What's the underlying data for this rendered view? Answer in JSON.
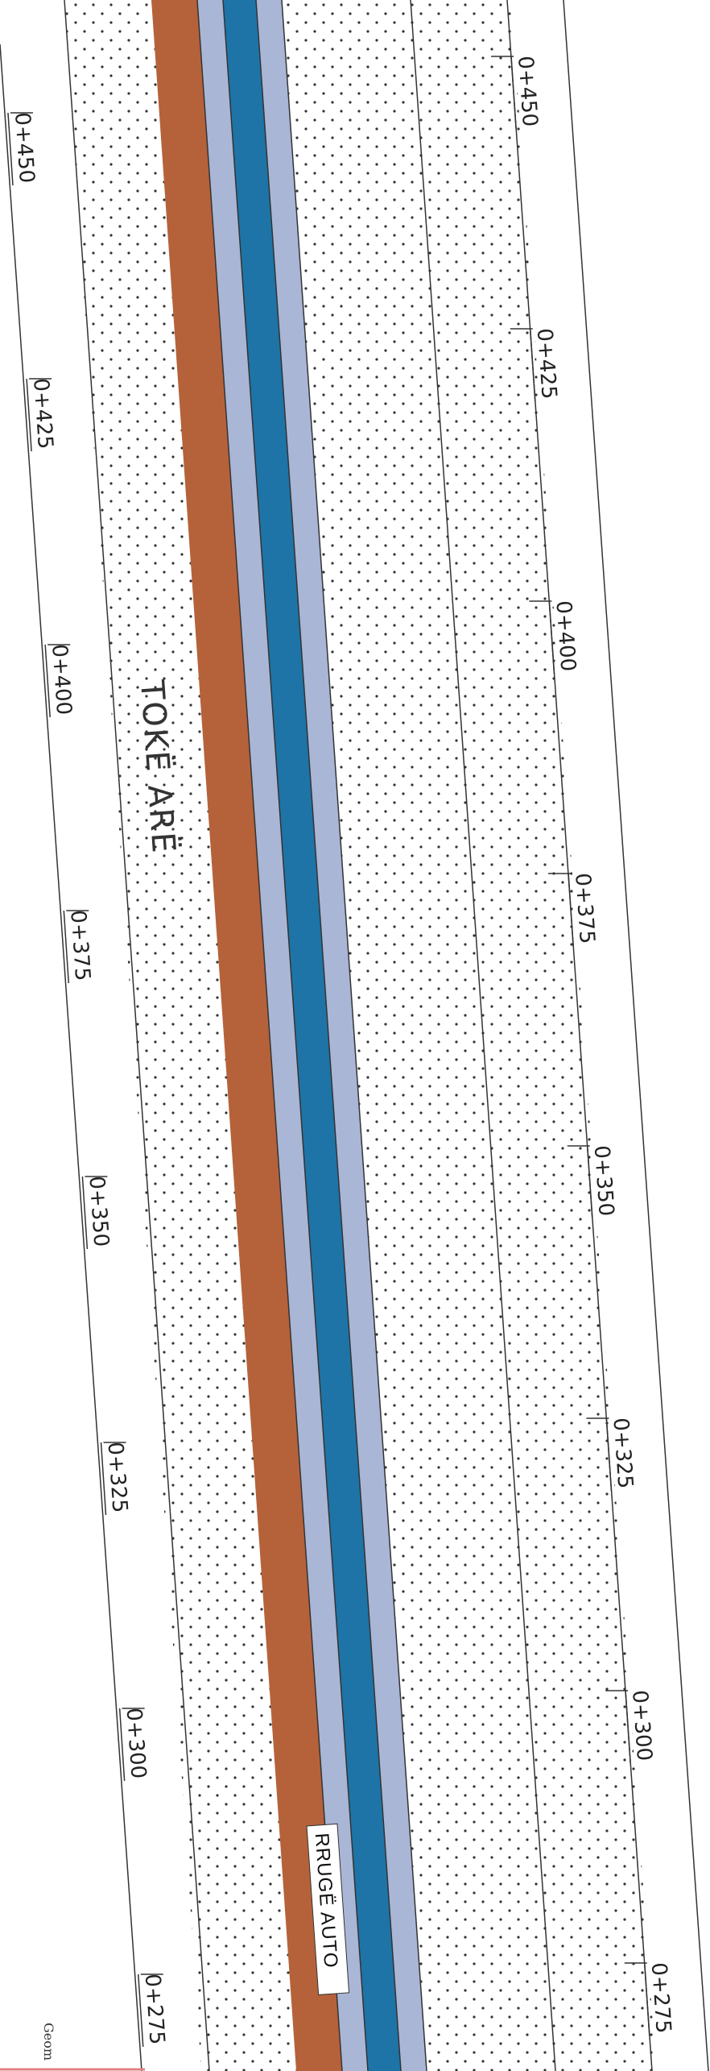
{
  "map": {
    "zone_label": "TOKË ARË",
    "road_label": "RRUGË AUTO",
    "chainage_left": [
      "0+450",
      "0+425",
      "0+400",
      "0+375",
      "0+350",
      "0+325",
      "0+300",
      "0+275"
    ],
    "chainage_right": [
      "0+450",
      "0+425",
      "0+400",
      "0+375",
      "0+350",
      "0+325",
      "0+300",
      "0+275"
    ],
    "colors": {
      "brown_strip": "#b5623a",
      "light_strip": "#a9b6d6",
      "blue_strip": "#1e74a6",
      "dots": "#333333",
      "lines": "#333333"
    },
    "stamp_text": "Geom"
  }
}
